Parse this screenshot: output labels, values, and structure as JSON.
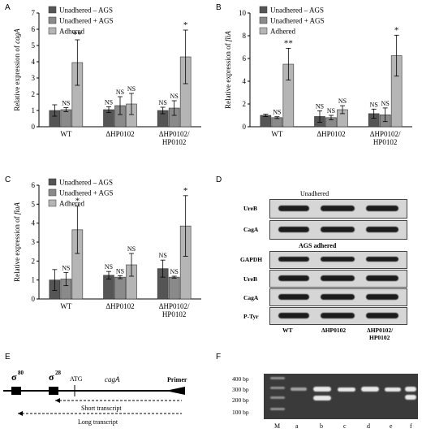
{
  "panels": {
    "A": {
      "label": "A"
    },
    "B": {
      "label": "B"
    },
    "C": {
      "label": "C"
    },
    "D": {
      "label": "D"
    },
    "E": {
      "label": "E"
    },
    "F": {
      "label": "F"
    }
  },
  "chart_data": [
    {
      "panel": "A",
      "type": "bar",
      "categories": [
        "WT",
        "ΔHP0102",
        "ΔHP0102/\nHP0102"
      ],
      "series": [
        {
          "name": "Unadhered – AGS",
          "values": [
            1.0,
            1.05,
            1.0
          ],
          "errors": [
            0.35,
            0.18,
            0.2
          ]
        },
        {
          "name": "Unadhered + AGS",
          "values": [
            1.05,
            1.3,
            1.15
          ],
          "errors": [
            0.12,
            0.55,
            0.45
          ]
        },
        {
          "name": "Adhered",
          "values": [
            3.95,
            1.4,
            4.3
          ],
          "errors": [
            1.4,
            0.65,
            1.65
          ]
        }
      ],
      "annotations": [
        [
          "",
          "NS",
          "**"
        ],
        [
          "NS",
          "NS",
          "NS"
        ],
        [
          "NS",
          "NS",
          "*"
        ]
      ],
      "ylabel_prefix": "Relative expression of ",
      "ylabel_gene": "cagA",
      "ylim": [
        0,
        7
      ],
      "yticks": [
        0,
        1,
        2,
        3,
        4,
        5,
        6,
        7
      ]
    },
    {
      "panel": "B",
      "type": "bar",
      "categories": [
        "WT",
        "ΔHP0102",
        "ΔHP0102/\nHP0102"
      ],
      "series": [
        {
          "name": "Unadhered – AGS",
          "values": [
            1.0,
            0.9,
            1.15
          ],
          "errors": [
            0.1,
            0.5,
            0.4
          ]
        },
        {
          "name": "Unadhered + AGS",
          "values": [
            0.8,
            0.8,
            1.05
          ],
          "errors": [
            0.08,
            0.2,
            0.6
          ]
        },
        {
          "name": "Adhered",
          "values": [
            5.5,
            1.5,
            6.25
          ],
          "errors": [
            1.4,
            0.35,
            1.8
          ]
        }
      ],
      "annotations": [
        [
          "",
          "NS",
          "**"
        ],
        [
          "NS",
          "NS",
          "NS"
        ],
        [
          "NS",
          "NS",
          "*"
        ]
      ],
      "ylabel_prefix": "Relative expression of ",
      "ylabel_gene": "fliA",
      "ylim": [
        0,
        10
      ],
      "yticks": [
        0,
        2,
        4,
        6,
        8,
        10
      ]
    },
    {
      "panel": "C",
      "type": "bar",
      "categories": [
        "WT",
        "ΔHP0102",
        "ΔHP0102/\nHP0102"
      ],
      "series": [
        {
          "name": "Unadhered – AGS",
          "values": [
            1.0,
            1.25,
            1.6
          ],
          "errors": [
            0.55,
            0.2,
            0.45
          ]
        },
        {
          "name": "Unadhered + AGS",
          "values": [
            1.05,
            1.15,
            1.15
          ],
          "errors": [
            0.35,
            0.08,
            0.05
          ]
        },
        {
          "name": "Adhered",
          "values": [
            3.65,
            1.8,
            3.85
          ],
          "errors": [
            1.25,
            0.6,
            1.6
          ]
        }
      ],
      "annotations": [
        [
          "",
          "NS",
          "*"
        ],
        [
          "NS",
          "NS",
          "NS"
        ],
        [
          "NS",
          "NS",
          "*"
        ]
      ],
      "ylabel_prefix": "Relative expression of ",
      "ylabel_gene": "flaA",
      "ylim": [
        0,
        6
      ],
      "yticks": [
        0,
        1,
        2,
        3,
        4,
        5,
        6
      ]
    }
  ],
  "legend_labels": [
    "Unadhered – AGS",
    "Unadhered + AGS",
    "Adhered"
  ],
  "colors": {
    "series1": "#555555",
    "series2": "#8a8a8a",
    "series3": "#b5b5b5"
  },
  "blot": {
    "unadhered_title": "Unadhered",
    "adhered_title": "AGS adhered",
    "unadhered_rows": [
      "UreB",
      "CagA"
    ],
    "adhered_rows": [
      "GAPDH",
      "UreB",
      "CagA",
      "P-Tyr"
    ],
    "lanes": [
      "WT",
      "ΔHP0102",
      "ΔHP0102/",
      "HP0102"
    ]
  },
  "schematic": {
    "sigma80": "σ",
    "sigma80_sup": "80",
    "sigma28": "σ",
    "sigma28_sup": "28",
    "atg": "ATG",
    "gene": "cagA",
    "primer": "Primer",
    "short": "Short transcript",
    "long": "Long transcript"
  },
  "gel": {
    "ladder": [
      "400 bp",
      "300 bp",
      "200 bp",
      "100 bp"
    ],
    "lanes": [
      "M",
      "a",
      "b",
      "c",
      "d",
      "e",
      "f"
    ]
  }
}
